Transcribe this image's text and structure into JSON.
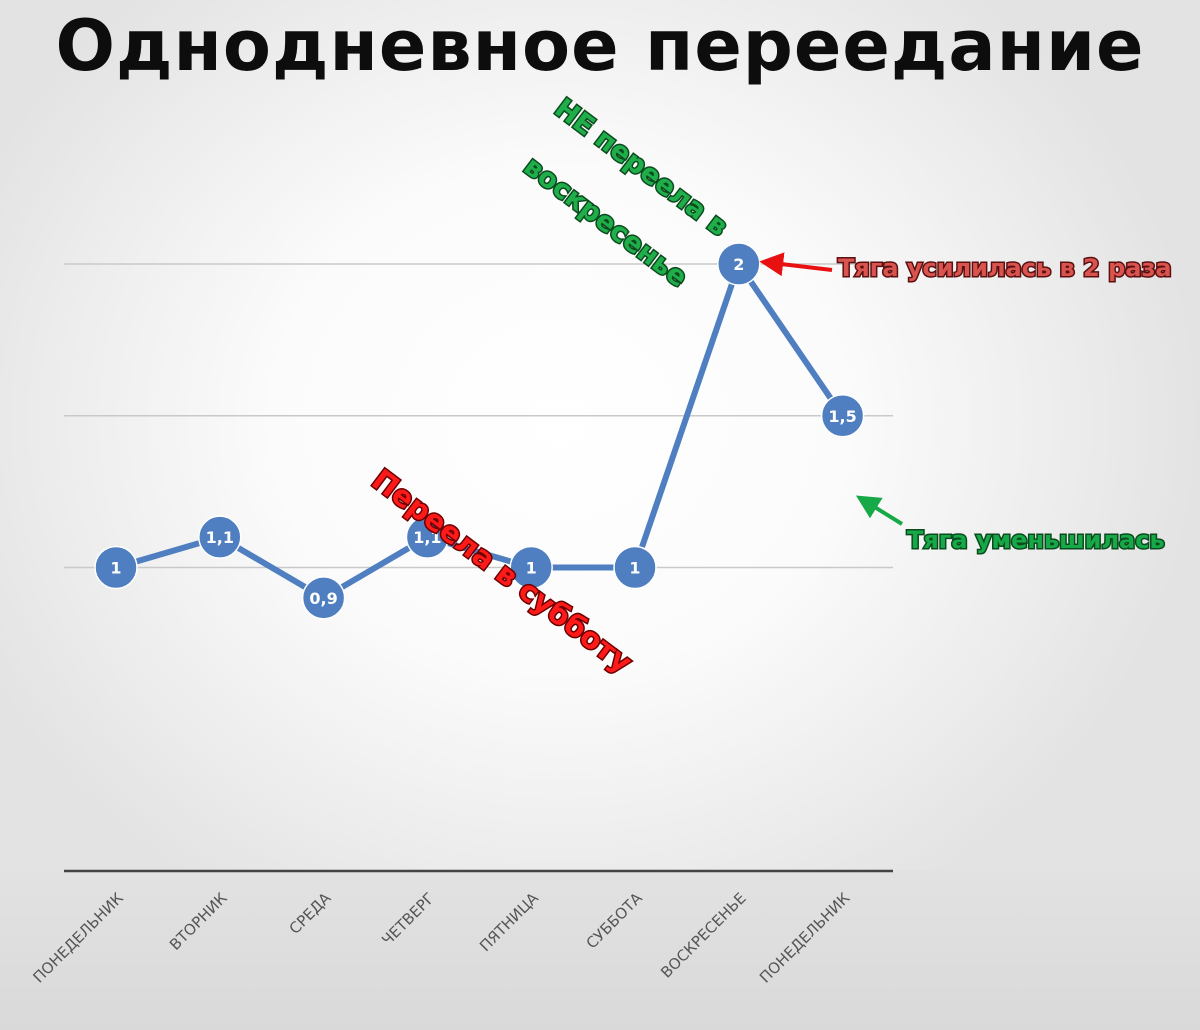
{
  "chart_data": {
    "type": "line",
    "title": "Однодневное переедание",
    "categories": [
      "ПОНЕДЕЛЬНИК",
      "ВТОРНИК",
      "СРЕДА",
      "ЧЕТВЕРГ",
      "ПЯТНИЦА",
      "СУББОТА",
      "ВОСКРЕСЕНЬЕ",
      "ПОНЕДЕЛЬНИК"
    ],
    "series": [
      {
        "values": [
          1,
          1.1,
          0.9,
          1.1,
          1,
          1,
          2,
          1.5
        ],
        "data_labels": [
          "1",
          "1,1",
          "0,9",
          "1,1",
          "1",
          "1",
          "2",
          "1,5"
        ],
        "color": "#4f7fc0"
      }
    ],
    "ylim": [
      0,
      2.5
    ],
    "gridlines": [
      1,
      1.5,
      2
    ],
    "legend": "none",
    "annotations": [
      {
        "text": "НЕ переела в",
        "color": "#1fae4a",
        "target_category": 6
      },
      {
        "text": "воскресенье",
        "color": "#1fae4a",
        "target_category": 6
      },
      {
        "text": "Тяга усилилась в 2 раза",
        "color": "#d9534f",
        "arrow_color": "#e81010",
        "target_category": 6
      },
      {
        "text": "Переела в субботу",
        "color": "#ff1a1a",
        "target_category": 5
      },
      {
        "text": "Тяга уменьшилась",
        "color": "#17a847",
        "arrow_color": "#17a847",
        "target_category": 7
      }
    ]
  }
}
